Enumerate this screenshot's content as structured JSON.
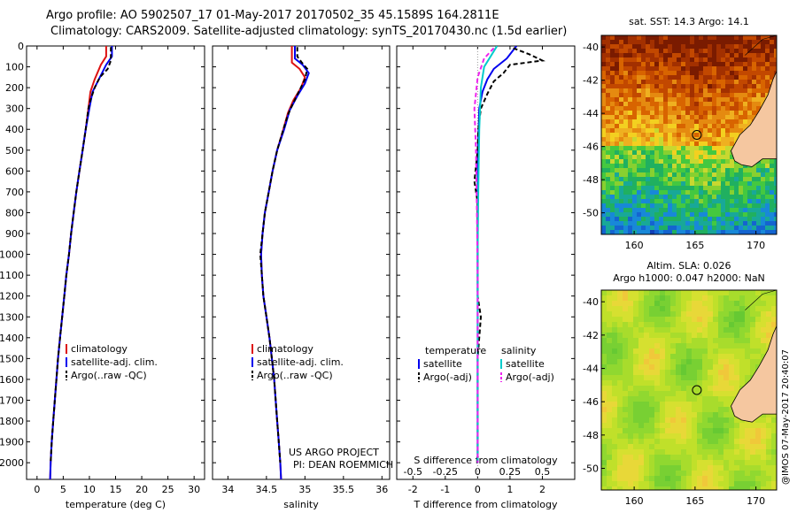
{
  "header": {
    "line1": "Argo profile: AO 5902507_17 01-May-2017 20170502_35 45.1589S 164.2811E",
    "line2": "Climatology: CARS2009. Satellite-adjusted climatology: synTS_20170430.nc (1.5d earlier)"
  },
  "side_text": "@IMOS 07-May-2017 20:40:07",
  "credit": {
    "line1": "US ARGO PROJECT",
    "line2": "PI: DEAN ROEMMICH"
  },
  "colors": {
    "climatology": "#dd1111",
    "satellite": "#0000ee",
    "argo": "#000000",
    "sal_satellite": "#00cccc",
    "sal_argo": "#ee22ee",
    "land": "#f5c7a0"
  },
  "chart_data": [
    {
      "type": "line",
      "xlabel": "temperature (deg C)",
      "xlim": [
        -2,
        32
      ],
      "xticks": [
        0,
        5,
        10,
        15,
        20,
        25,
        30
      ],
      "ylim": [
        2080,
        0
      ],
      "yticks": [
        0,
        100,
        200,
        300,
        400,
        500,
        600,
        700,
        800,
        900,
        1000,
        1100,
        1200,
        1300,
        1400,
        1500,
        1600,
        1700,
        1800,
        1900,
        2000
      ],
      "legend": [
        "climatology",
        "satellite-adj. clim.",
        "Argo(..raw -QC)"
      ],
      "series": [
        {
          "name": "climatology",
          "color": "#dd1111",
          "style": "solid",
          "points": [
            [
              13.2,
              0
            ],
            [
              13.2,
              50
            ],
            [
              12.2,
              90
            ],
            [
              11.0,
              160
            ],
            [
              10.2,
              220
            ],
            [
              9.8,
              300
            ],
            [
              9.3,
              400
            ],
            [
              8.7,
              500
            ],
            [
              8.1,
              600
            ],
            [
              7.5,
              700
            ],
            [
              7.0,
              800
            ],
            [
              6.5,
              900
            ],
            [
              6.1,
              1000
            ],
            [
              5.6,
              1100
            ],
            [
              5.2,
              1200
            ],
            [
              4.8,
              1300
            ],
            [
              4.4,
              1400
            ],
            [
              4.0,
              1500
            ],
            [
              3.7,
              1600
            ],
            [
              3.4,
              1700
            ],
            [
              3.1,
              1800
            ],
            [
              2.8,
              1900
            ],
            [
              2.6,
              2000
            ],
            [
              2.5,
              2080
            ]
          ]
        },
        {
          "name": "satellite-adj. clim.",
          "color": "#0000ee",
          "style": "solid",
          "points": [
            [
              14.3,
              0
            ],
            [
              14.3,
              50
            ],
            [
              13.2,
              90
            ],
            [
              12.0,
              150
            ],
            [
              10.6,
              220
            ],
            [
              10.0,
              300
            ],
            [
              9.3,
              400
            ],
            [
              8.7,
              500
            ],
            [
              8.1,
              600
            ],
            [
              7.5,
              700
            ],
            [
              7.0,
              800
            ],
            [
              6.5,
              900
            ],
            [
              6.1,
              1000
            ],
            [
              5.6,
              1100
            ],
            [
              5.2,
              1200
            ],
            [
              4.8,
              1300
            ],
            [
              4.4,
              1400
            ],
            [
              4.0,
              1500
            ],
            [
              3.7,
              1600
            ],
            [
              3.4,
              1700
            ],
            [
              3.1,
              1800
            ],
            [
              2.8,
              1900
            ],
            [
              2.6,
              2000
            ],
            [
              2.5,
              2080
            ]
          ]
        },
        {
          "name": "Argo(..raw -QC)",
          "color": "#000000",
          "style": "dashed",
          "points": [
            [
              14.1,
              5
            ],
            [
              14.1,
              70
            ],
            [
              13.5,
              110
            ],
            [
              12.0,
              150
            ],
            [
              11.0,
              200
            ],
            [
              10.2,
              260
            ],
            [
              9.8,
              300
            ],
            [
              9.3,
              400
            ],
            [
              8.7,
              500
            ],
            [
              8.1,
              600
            ],
            [
              7.5,
              700
            ],
            [
              7.0,
              800
            ],
            [
              6.5,
              900
            ],
            [
              6.1,
              1000
            ],
            [
              5.6,
              1100
            ],
            [
              5.2,
              1200
            ],
            [
              4.8,
              1300
            ],
            [
              4.4,
              1400
            ],
            [
              4.0,
              1500
            ],
            [
              3.7,
              1600
            ],
            [
              3.4,
              1700
            ],
            [
              3.1,
              1800
            ],
            [
              2.8,
              1900
            ],
            [
              2.6,
              2000
            ]
          ]
        }
      ]
    },
    {
      "type": "line",
      "xlabel": "salinity",
      "xlim": [
        33.8,
        36.1
      ],
      "xticks": [
        34,
        34.5,
        35,
        35.5,
        36
      ],
      "ylim": [
        2080,
        0
      ],
      "legend": [
        "climatology",
        "satellite-adj. clim.",
        "Argo(..raw -QC)"
      ],
      "series": [
        {
          "name": "climatology",
          "color": "#dd1111",
          "style": "solid",
          "points": [
            [
              34.83,
              0
            ],
            [
              34.83,
              80
            ],
            [
              34.93,
              110
            ],
            [
              35.0,
              150
            ],
            [
              34.95,
              200
            ],
            [
              34.85,
              260
            ],
            [
              34.78,
              320
            ],
            [
              34.72,
              400
            ],
            [
              34.64,
              500
            ],
            [
              34.58,
              600
            ],
            [
              34.53,
              700
            ],
            [
              34.48,
              800
            ],
            [
              34.45,
              900
            ],
            [
              34.43,
              1000
            ],
            [
              34.44,
              1100
            ],
            [
              34.46,
              1200
            ],
            [
              34.5,
              1300
            ],
            [
              34.54,
              1400
            ],
            [
              34.57,
              1500
            ],
            [
              34.6,
              1600
            ],
            [
              34.62,
              1700
            ],
            [
              34.64,
              1800
            ],
            [
              34.66,
              1900
            ],
            [
              34.68,
              2000
            ],
            [
              34.69,
              2080
            ]
          ]
        },
        {
          "name": "satellite-adj. clim.",
          "color": "#0000ee",
          "style": "solid",
          "points": [
            [
              34.87,
              0
            ],
            [
              34.87,
              60
            ],
            [
              34.97,
              90
            ],
            [
              35.05,
              130
            ],
            [
              35.0,
              180
            ],
            [
              34.9,
              240
            ],
            [
              34.8,
              310
            ],
            [
              34.73,
              400
            ],
            [
              34.64,
              500
            ],
            [
              34.58,
              600
            ],
            [
              34.53,
              700
            ],
            [
              34.48,
              800
            ],
            [
              34.45,
              900
            ],
            [
              34.43,
              1000
            ],
            [
              34.44,
              1100
            ],
            [
              34.46,
              1200
            ],
            [
              34.5,
              1300
            ],
            [
              34.54,
              1400
            ],
            [
              34.57,
              1500
            ],
            [
              34.6,
              1600
            ],
            [
              34.62,
              1700
            ],
            [
              34.64,
              1800
            ],
            [
              34.66,
              1900
            ],
            [
              34.68,
              2000
            ],
            [
              34.69,
              2080
            ]
          ]
        },
        {
          "name": "Argo(..raw -QC)",
          "color": "#000000",
          "style": "dashed",
          "points": [
            [
              34.9,
              5
            ],
            [
              34.9,
              50
            ],
            [
              34.96,
              80
            ],
            [
              35.03,
              110
            ],
            [
              35.0,
              160
            ],
            [
              34.92,
              220
            ],
            [
              34.84,
              280
            ],
            [
              34.78,
              330
            ],
            [
              34.72,
              400
            ],
            [
              34.64,
              500
            ],
            [
              34.58,
              600
            ],
            [
              34.53,
              700
            ],
            [
              34.48,
              800
            ],
            [
              34.45,
              900
            ],
            [
              34.42,
              1000
            ],
            [
              34.44,
              1100
            ],
            [
              34.46,
              1200
            ],
            [
              34.5,
              1300
            ],
            [
              34.54,
              1400
            ],
            [
              34.57,
              1500
            ],
            [
              34.6,
              1600
            ],
            [
              34.62,
              1700
            ],
            [
              34.64,
              1800
            ],
            [
              34.66,
              1900
            ],
            [
              34.68,
              2000
            ]
          ]
        }
      ]
    },
    {
      "type": "line",
      "xlabel": "T difference from climatology",
      "top_label": "S difference from climatology",
      "xlim": [
        -2.5,
        3
      ],
      "xticks": [
        -2,
        -1,
        0,
        1,
        2
      ],
      "top_ticks": [
        [
          "-0.5",
          -2
        ],
        [
          "-0.25",
          -1
        ],
        [
          "0",
          0
        ],
        [
          "0.25",
          1
        ],
        [
          "0.5",
          2
        ]
      ],
      "ylim": [
        2080,
        0
      ],
      "legend_left": {
        "title": "temperature",
        "items": [
          "satellite",
          "Argo(-adj)"
        ]
      },
      "legend_right": {
        "title": "salinity",
        "items": [
          "satellite",
          "Argo(-adj)"
        ]
      },
      "series": [
        {
          "name": "T satellite",
          "color": "#0000ee",
          "style": "solid",
          "points": [
            [
              1.2,
              0
            ],
            [
              0.9,
              60
            ],
            [
              0.5,
              110
            ],
            [
              0.3,
              160
            ],
            [
              0.15,
              220
            ],
            [
              0.05,
              300
            ],
            [
              0.02,
              450
            ],
            [
              0.0,
              600
            ],
            [
              0,
              2000
            ]
          ]
        },
        {
          "name": "T Argo(-adj)",
          "color": "#000000",
          "style": "dashed",
          "points": [
            [
              1.1,
              10
            ],
            [
              1.6,
              40
            ],
            [
              2.0,
              70
            ],
            [
              1.0,
              90
            ],
            [
              0.8,
              130
            ],
            [
              0.5,
              170
            ],
            [
              0.3,
              230
            ],
            [
              0.1,
              300
            ],
            [
              0.02,
              400
            ],
            [
              0,
              500
            ],
            [
              -0.1,
              650
            ],
            [
              0,
              750
            ],
            [
              0,
              1200
            ],
            [
              0.1,
              1300
            ],
            [
              0.05,
              1400
            ],
            [
              0,
              1500
            ],
            [
              0,
              2000
            ]
          ]
        },
        {
          "name": "S satellite",
          "color": "#00cccc",
          "style": "solid",
          "points": [
            [
              0.6,
              0
            ],
            [
              0.4,
              50
            ],
            [
              0.2,
              100
            ],
            [
              0.1,
              200
            ],
            [
              0.05,
              400
            ],
            [
              0.02,
              700
            ],
            [
              0,
              1000
            ],
            [
              0,
              2000
            ]
          ]
        },
        {
          "name": "S Argo(-adj)",
          "color": "#ee22ee",
          "style": "dashed",
          "points": [
            [
              0.5,
              10
            ],
            [
              0.2,
              60
            ],
            [
              0,
              150
            ],
            [
              -0.1,
              300
            ],
            [
              -0.05,
              500
            ],
            [
              -0.02,
              800
            ],
            [
              0,
              1100
            ],
            [
              0,
              2000
            ]
          ]
        }
      ]
    }
  ],
  "maps": [
    {
      "title": "sat. SST: 14.3 Argo: 14.1",
      "xticks": [
        "160",
        "165",
        "170"
      ],
      "yticks": [
        "-40",
        "-42",
        "-44",
        "-46",
        "-48",
        "-50"
      ]
    },
    {
      "title1": "Altim. SLA: 0.026",
      "title2": "Argo h1000: 0.047 h2000: NaN",
      "xticks": [
        "160",
        "165",
        "170"
      ],
      "yticks": [
        "-40",
        "-42",
        "-44",
        "-46",
        "-48",
        "-50"
      ]
    }
  ]
}
